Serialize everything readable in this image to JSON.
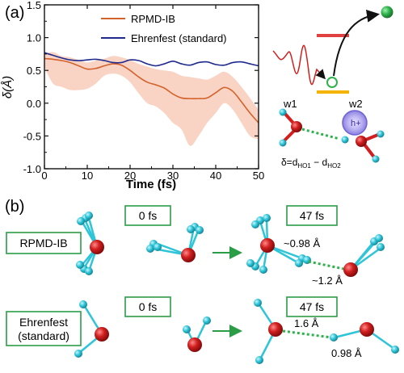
{
  "panel_a": {
    "label": "(a)",
    "chart_data": {
      "type": "line",
      "xlabel": "Time (fs)",
      "ylabel": "δ(Å)",
      "xlim": [
        0,
        50
      ],
      "ylim": [
        -1.0,
        1.5
      ],
      "xticks": [
        "0",
        "10",
        "20",
        "30",
        "40",
        "50"
      ],
      "yticks": [
        "-1.0",
        "-0.5",
        "0.0",
        "0.5",
        "1.0",
        "1.5"
      ],
      "legend_position": "top-center",
      "series": [
        {
          "name": "RPMD-IB",
          "color": "#d4622b",
          "x": [
            0,
            2,
            4,
            6,
            8,
            10,
            12,
            14,
            16,
            18,
            20,
            22,
            24,
            26,
            28,
            30,
            32,
            34,
            36,
            38,
            40,
            42,
            44,
            46,
            48,
            50
          ],
          "y": [
            0.68,
            0.67,
            0.65,
            0.62,
            0.57,
            0.52,
            0.53,
            0.57,
            0.6,
            0.58,
            0.5,
            0.4,
            0.32,
            0.28,
            0.23,
            0.14,
            0.08,
            0.07,
            0.07,
            0.08,
            0.16,
            0.24,
            0.18,
            0.02,
            -0.15,
            -0.3
          ],
          "band_upper": [
            0.75,
            0.78,
            0.72,
            0.7,
            0.66,
            0.62,
            0.65,
            0.68,
            0.72,
            0.7,
            0.66,
            0.6,
            0.56,
            0.52,
            0.5,
            0.48,
            0.42,
            0.4,
            0.38,
            0.36,
            0.42,
            0.48,
            0.4,
            0.25,
            0.08,
            -0.1
          ],
          "band_lower": [
            0.55,
            0.3,
            0.25,
            0.2,
            0.2,
            0.22,
            0.3,
            0.42,
            0.45,
            0.42,
            0.32,
            0.15,
            0.0,
            -0.05,
            -0.15,
            -0.3,
            -0.4,
            -0.65,
            -0.5,
            -0.3,
            -0.15,
            0.0,
            -0.1,
            -0.3,
            -0.5,
            -0.55
          ]
        },
        {
          "name": "Ehrenfest (standard)",
          "color": "#1f2a8c",
          "x": [
            0,
            2,
            4,
            6,
            8,
            10,
            12,
            14,
            16,
            18,
            20,
            22,
            24,
            26,
            28,
            30,
            32,
            34,
            36,
            38,
            40,
            42,
            44,
            46,
            48,
            50
          ],
          "y": [
            0.77,
            0.73,
            0.69,
            0.66,
            0.65,
            0.66,
            0.67,
            0.65,
            0.62,
            0.62,
            0.66,
            0.65,
            0.6,
            0.57,
            0.6,
            0.64,
            0.6,
            0.58,
            0.62,
            0.63,
            0.59,
            0.58,
            0.62,
            0.63,
            0.6,
            0.57
          ]
        }
      ]
    },
    "schematic": {
      "w1": "w1",
      "w2": "w2",
      "hole": "h+",
      "delta_prefix": "δ=d",
      "sub1": "HO1",
      "minus": " − d",
      "sub2": "HO2",
      "colors": {
        "oxygen": "#d11f1f",
        "hydrogen": "#2ec5d8",
        "level": "#e04040",
        "level_low": "#f4b400",
        "electron": "#2db34a"
      }
    }
  },
  "panel_b": {
    "label": "(b)",
    "rows": [
      {
        "label_line1": "RPMD-IB",
        "label_line2": "",
        "t0": "0 fs",
        "t1": "47 fs",
        "dist_a": "~0.98 Å",
        "dist_b": "~1.2 Å"
      },
      {
        "label_line1": "Ehrenfest",
        "label_line2": "(standard)",
        "t0": "0 fs",
        "t1": "47 fs",
        "dist_a": "1.6 Å",
        "dist_b": "0.98 Å"
      }
    ]
  }
}
